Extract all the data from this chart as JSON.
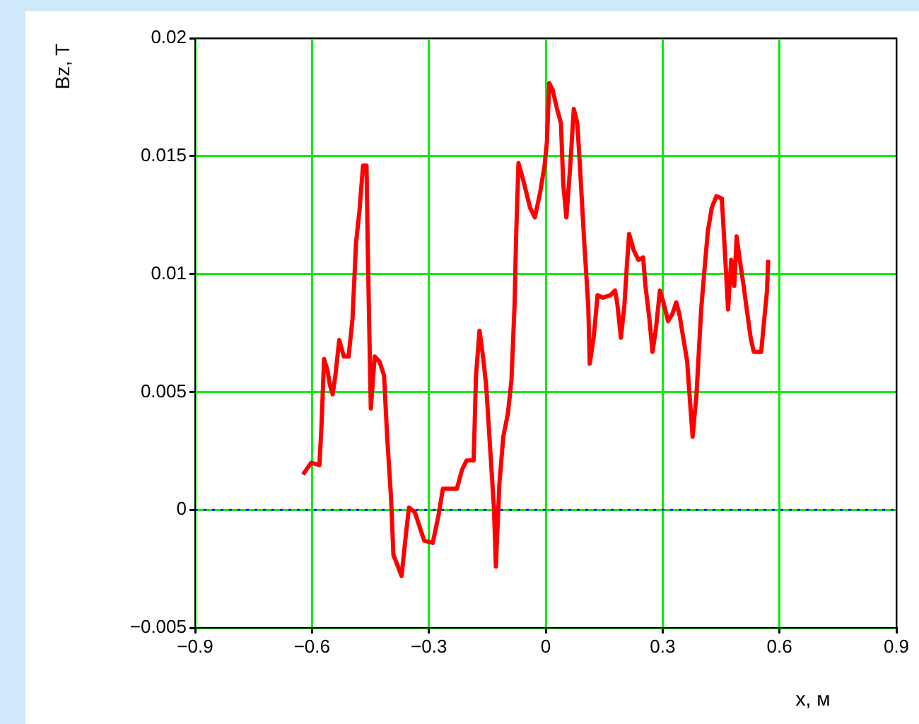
{
  "chart_data": {
    "type": "line",
    "xlabel": "x, м",
    "ylabel": "Bz, T",
    "xlim": [
      -0.9,
      0.9
    ],
    "xticks": [
      -0.9,
      -0.6,
      -0.3,
      0,
      0.3,
      0.6,
      0.9
    ],
    "ylim": [
      -0.005,
      0.02
    ],
    "yticks": [
      -0.005,
      0,
      0.005,
      0.01,
      0.015,
      0.02
    ],
    "grid": true,
    "legend": false,
    "marker": "none",
    "line_style": "solid",
    "ref_lines": [
      {
        "axis": "y",
        "value": 0,
        "color": "#2020ff",
        "line_style": "dotted"
      }
    ],
    "series": [
      {
        "color": "#ff0000",
        "x": [
          -0.623,
          -0.602,
          -0.581,
          -0.576,
          -0.569,
          -0.56,
          -0.554,
          -0.547,
          -0.54,
          -0.53,
          -0.518,
          -0.506,
          -0.496,
          -0.487,
          -0.478,
          -0.469,
          -0.46,
          -0.457,
          -0.453,
          -0.449,
          -0.439,
          -0.427,
          -0.415,
          -0.407,
          -0.397,
          -0.391,
          -0.37,
          -0.358,
          -0.351,
          -0.336,
          -0.312,
          -0.29,
          -0.276,
          -0.264,
          -0.228,
          -0.215,
          -0.203,
          -0.185,
          -0.179,
          -0.17,
          -0.161,
          -0.153,
          -0.143,
          -0.133,
          -0.128,
          -0.119,
          -0.109,
          -0.097,
          -0.088,
          -0.08,
          -0.076,
          -0.07,
          -0.058,
          -0.04,
          -0.028,
          -0.015,
          -0.003,
          0.003,
          0.009,
          0.018,
          0.029,
          0.039,
          0.045,
          0.053,
          0.063,
          0.072,
          0.081,
          0.087,
          0.099,
          0.109,
          0.113,
          0.123,
          0.133,
          0.147,
          0.166,
          0.178,
          0.184,
          0.193,
          0.202,
          0.208,
          0.214,
          0.226,
          0.238,
          0.25,
          0.256,
          0.266,
          0.274,
          0.283,
          0.293,
          0.302,
          0.314,
          0.325,
          0.335,
          0.343,
          0.353,
          0.363,
          0.369,
          0.377,
          0.387,
          0.393,
          0.399,
          0.407,
          0.416,
          0.426,
          0.438,
          0.452,
          0.46,
          0.468,
          0.476,
          0.484,
          0.49,
          0.498,
          0.508,
          0.516,
          0.526,
          0.534,
          0.553,
          0.561,
          0.568,
          0.571
        ],
        "values": [
          0.0015,
          0.002,
          0.0019,
          0.0034,
          0.0064,
          0.0059,
          0.0053,
          0.0049,
          0.0057,
          0.0072,
          0.0065,
          0.0065,
          0.0081,
          0.0113,
          0.0127,
          0.0146,
          0.0146,
          0.0113,
          0.0077,
          0.0043,
          0.0065,
          0.0063,
          0.0057,
          0.0031,
          0.0005,
          -0.0019,
          -0.0028,
          -0.0009,
          0.0001,
          -0.0001,
          -0.0013,
          -0.0014,
          -0.0003,
          0.0009,
          0.0009,
          0.0017,
          0.0021,
          0.0021,
          0.0057,
          0.0076,
          0.0065,
          0.0053,
          0.0027,
          0.0001,
          -0.0024,
          0.0011,
          0.0031,
          0.0041,
          0.0055,
          0.0087,
          0.0116,
          0.0147,
          0.014,
          0.0128,
          0.0124,
          0.0134,
          0.0146,
          0.0156,
          0.0181,
          0.0178,
          0.017,
          0.0164,
          0.0138,
          0.0124,
          0.0146,
          0.017,
          0.0164,
          0.0148,
          0.0113,
          0.0087,
          0.0062,
          0.0073,
          0.0091,
          0.009,
          0.0091,
          0.0093,
          0.0087,
          0.0073,
          0.0087,
          0.0103,
          0.0117,
          0.011,
          0.0106,
          0.0107,
          0.0095,
          0.0081,
          0.0067,
          0.0077,
          0.0093,
          0.0088,
          0.008,
          0.0083,
          0.0088,
          0.0083,
          0.0073,
          0.0063,
          0.0049,
          0.0031,
          0.0049,
          0.0067,
          0.0085,
          0.0101,
          0.0118,
          0.0128,
          0.0133,
          0.0132,
          0.0109,
          0.0085,
          0.0106,
          0.0095,
          0.0116,
          0.0106,
          0.0095,
          0.0085,
          0.0073,
          0.0067,
          0.0067,
          0.0081,
          0.0093,
          0.0106
        ]
      }
    ]
  }
}
